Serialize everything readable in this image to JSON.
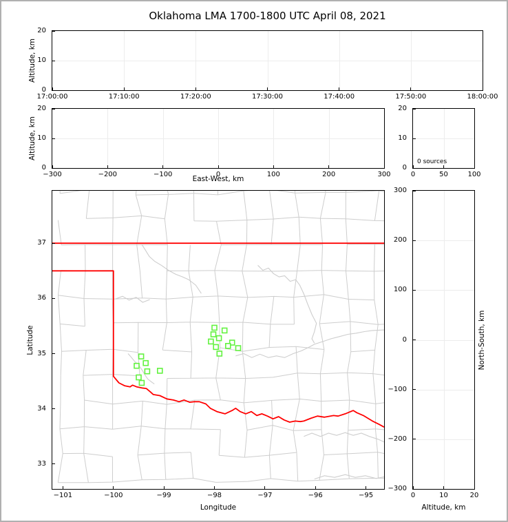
{
  "title": "Oklahoma LMA 1700-1800 UTC April 08, 2021",
  "colors": {
    "state_border": "#ff0000",
    "county_lines": "#cdcdcd",
    "rivers": "#cdcdcd",
    "station_marker": "#62f23f",
    "gridline": "#ececec",
    "spine": "#000000",
    "figure_frame": "#b0b0b0",
    "background": "#ffffff"
  },
  "chart_data": [
    {
      "id": "time_height",
      "type": "scatter",
      "xlabel": "",
      "ylabel": "Altitude, km",
      "xlim": [
        0,
        3600
      ],
      "ylim": [
        0,
        20
      ],
      "xticks": [
        {
          "v": 0,
          "label": "17:00:00"
        },
        {
          "v": 600,
          "label": "17:10:00"
        },
        {
          "v": 1200,
          "label": "17:20:00"
        },
        {
          "v": 1800,
          "label": "17:30:00"
        },
        {
          "v": 2400,
          "label": "17:40:00"
        },
        {
          "v": 3000,
          "label": "17:50:00"
        },
        {
          "v": 3600,
          "label": "18:00:00"
        }
      ],
      "yticks": [
        {
          "v": 0,
          "label": "0"
        },
        {
          "v": 10,
          "label": "10"
        },
        {
          "v": 20,
          "label": "20"
        }
      ],
      "points": []
    },
    {
      "id": "ew_height",
      "type": "scatter",
      "xlabel": "East-West, km",
      "ylabel": "Altitude, km",
      "xlim": [
        -300,
        300
      ],
      "ylim": [
        0,
        20
      ],
      "xticks": [
        {
          "v": -300,
          "label": "−300"
        },
        {
          "v": -200,
          "label": "−200"
        },
        {
          "v": -100,
          "label": "−100"
        },
        {
          "v": 0,
          "label": "0"
        },
        {
          "v": 100,
          "label": "100"
        },
        {
          "v": 200,
          "label": "200"
        },
        {
          "v": 300,
          "label": "300"
        }
      ],
      "yticks": [
        {
          "v": 0,
          "label": "0"
        },
        {
          "v": 10,
          "label": "10"
        },
        {
          "v": 20,
          "label": "20"
        }
      ],
      "points": []
    },
    {
      "id": "alt_histogram",
      "type": "line",
      "xlabel": "",
      "ylabel": "",
      "xlim": [
        0,
        100
      ],
      "ylim": [
        0,
        20
      ],
      "xticks": [
        {
          "v": 0,
          "label": "0"
        },
        {
          "v": 50,
          "label": "50"
        },
        {
          "v": 100,
          "label": "100"
        }
      ],
      "yticks": [
        {
          "v": 0,
          "label": "0"
        },
        {
          "v": 10,
          "label": "10"
        },
        {
          "v": 20,
          "label": "20"
        }
      ],
      "note": "0 sources",
      "points": []
    },
    {
      "id": "map",
      "type": "scatter",
      "xlabel": "Longitude",
      "ylabel": "Latitude",
      "xlim": [
        -101.21,
        -94.64
      ],
      "ylim": [
        32.55,
        37.95
      ],
      "xticks": [
        {
          "v": -101,
          "label": "−101"
        },
        {
          "v": -100,
          "label": "−100"
        },
        {
          "v": -99,
          "label": "−99"
        },
        {
          "v": -98,
          "label": "−98"
        },
        {
          "v": -97,
          "label": "−97"
        },
        {
          "v": -96,
          "label": "−96"
        },
        {
          "v": -95,
          "label": "−95"
        }
      ],
      "yticks": [
        {
          "v": 33,
          "label": "33"
        },
        {
          "v": 34,
          "label": "34"
        },
        {
          "v": 35,
          "label": "35"
        },
        {
          "v": 36,
          "label": "36"
        },
        {
          "v": 37,
          "label": "37"
        }
      ],
      "stations": {
        "marker": "open-square",
        "points": [
          [
            -98.0,
            35.47
          ],
          [
            -97.8,
            35.42
          ],
          [
            -98.02,
            35.35
          ],
          [
            -97.91,
            35.28
          ],
          [
            -98.07,
            35.22
          ],
          [
            -97.65,
            35.2
          ],
          [
            -97.73,
            35.14
          ],
          [
            -97.97,
            35.12
          ],
          [
            -97.53,
            35.1
          ],
          [
            -97.9,
            35.0
          ],
          [
            -99.45,
            34.95
          ],
          [
            -99.36,
            34.83
          ],
          [
            -99.54,
            34.78
          ],
          [
            -99.33,
            34.68
          ],
          [
            -99.08,
            34.69
          ],
          [
            -99.5,
            34.57
          ],
          [
            -99.44,
            34.47
          ]
        ]
      },
      "state_border": {
        "polylines": [
          [
            [
              -101.21,
              37.0
            ],
            [
              -94.64,
              37.0
            ]
          ],
          [
            [
              -101.21,
              36.5
            ],
            [
              -100.0,
              36.5
            ],
            [
              -100.0,
              34.59
            ],
            [
              -99.89,
              34.47
            ],
            [
              -99.78,
              34.42
            ],
            [
              -99.67,
              34.4
            ],
            [
              -99.62,
              34.43
            ],
            [
              -99.54,
              34.4
            ],
            [
              -99.44,
              34.38
            ],
            [
              -99.35,
              34.37
            ],
            [
              -99.27,
              34.31
            ],
            [
              -99.21,
              34.26
            ],
            [
              -99.08,
              34.24
            ],
            [
              -98.94,
              34.18
            ],
            [
              -98.81,
              34.16
            ],
            [
              -98.7,
              34.13
            ],
            [
              -98.6,
              34.16
            ],
            [
              -98.49,
              34.12
            ],
            [
              -98.4,
              34.13
            ],
            [
              -98.3,
              34.13
            ],
            [
              -98.17,
              34.09
            ],
            [
              -98.08,
              34.01
            ],
            [
              -97.95,
              33.95
            ],
            [
              -97.79,
              33.91
            ],
            [
              -97.65,
              33.97
            ],
            [
              -97.58,
              34.01
            ],
            [
              -97.49,
              33.95
            ],
            [
              -97.38,
              33.91
            ],
            [
              -97.27,
              33.95
            ],
            [
              -97.16,
              33.88
            ],
            [
              -97.06,
              33.91
            ],
            [
              -96.95,
              33.87
            ],
            [
              -96.84,
              33.82
            ],
            [
              -96.73,
              33.86
            ],
            [
              -96.62,
              33.8
            ],
            [
              -96.51,
              33.76
            ],
            [
              -96.4,
              33.78
            ],
            [
              -96.3,
              33.77
            ],
            [
              -96.23,
              33.78
            ],
            [
              -96.09,
              33.83
            ],
            [
              -95.96,
              33.87
            ],
            [
              -95.82,
              33.85
            ],
            [
              -95.64,
              33.88
            ],
            [
              -95.55,
              33.87
            ],
            [
              -95.41,
              33.91
            ],
            [
              -95.25,
              33.97
            ],
            [
              -95.18,
              33.93
            ],
            [
              -95.05,
              33.88
            ],
            [
              -94.87,
              33.78
            ],
            [
              -94.74,
              33.72
            ],
            [
              -94.64,
              33.67
            ]
          ]
        ]
      },
      "rivers": [
        [
          [
            -99.44,
            36.98
          ],
          [
            -99.37,
            36.88
          ],
          [
            -99.29,
            36.76
          ],
          [
            -99.18,
            36.67
          ],
          [
            -99.05,
            36.6
          ],
          [
            -98.91,
            36.51
          ],
          [
            -98.77,
            36.44
          ],
          [
            -98.63,
            36.39
          ],
          [
            -98.51,
            36.34
          ],
          [
            -98.37,
            36.24
          ],
          [
            -98.26,
            36.09
          ]
        ],
        [
          [
            -99.96,
            35.99
          ],
          [
            -99.82,
            36.04
          ],
          [
            -99.69,
            35.97
          ],
          [
            -99.55,
            36.02
          ],
          [
            -99.42,
            35.93
          ],
          [
            -99.28,
            35.98
          ]
        ],
        [
          [
            -97.14,
            36.6
          ],
          [
            -97.04,
            36.51
          ],
          [
            -96.93,
            36.55
          ],
          [
            -96.83,
            36.45
          ],
          [
            -96.72,
            36.39
          ],
          [
            -96.61,
            36.41
          ],
          [
            -96.5,
            36.31
          ],
          [
            -96.39,
            36.34
          ],
          [
            -96.31,
            36.24
          ],
          [
            -96.23,
            36.08
          ],
          [
            -96.15,
            35.89
          ],
          [
            -96.07,
            35.71
          ],
          [
            -95.98,
            35.55
          ],
          [
            -96.02,
            35.4
          ],
          [
            -96.07,
            35.27
          ],
          [
            -96.02,
            35.19
          ]
        ],
        [
          [
            -97.58,
            34.96
          ],
          [
            -97.42,
            35.0
          ],
          [
            -97.26,
            34.93
          ],
          [
            -97.1,
            34.99
          ],
          [
            -96.93,
            34.93
          ],
          [
            -96.77,
            34.96
          ],
          [
            -96.61,
            34.93
          ],
          [
            -96.44,
            35.0
          ],
          [
            -96.28,
            35.05
          ],
          [
            -96.12,
            35.12
          ],
          [
            -96.02,
            35.17
          ],
          [
            -95.85,
            35.22
          ],
          [
            -95.69,
            35.27
          ],
          [
            -95.52,
            35.31
          ],
          [
            -95.36,
            35.35
          ],
          [
            -95.2,
            35.37
          ],
          [
            -95.03,
            35.4
          ],
          [
            -94.87,
            35.42
          ],
          [
            -94.64,
            35.43
          ]
        ],
        [
          [
            -99.71,
            35.0
          ],
          [
            -99.65,
            34.94
          ],
          [
            -99.58,
            34.86
          ],
          [
            -99.5,
            34.79
          ],
          [
            -99.43,
            34.7
          ],
          [
            -99.38,
            34.62
          ],
          [
            -99.32,
            34.54
          ],
          [
            -99.25,
            34.49
          ],
          [
            -99.19,
            34.45
          ]
        ],
        [
          [
            -96.23,
            33.5
          ],
          [
            -96.07,
            33.56
          ],
          [
            -95.9,
            33.5
          ],
          [
            -95.74,
            33.56
          ],
          [
            -95.58,
            33.52
          ],
          [
            -95.41,
            33.57
          ],
          [
            -95.25,
            33.52
          ],
          [
            -95.09,
            33.56
          ],
          [
            -94.93,
            33.5
          ],
          [
            -94.76,
            33.45
          ],
          [
            -94.64,
            33.4
          ]
        ],
        [
          [
            -96.02,
            32.73
          ],
          [
            -95.82,
            32.79
          ],
          [
            -95.62,
            32.76
          ],
          [
            -95.41,
            32.81
          ],
          [
            -95.21,
            32.76
          ],
          [
            -95.01,
            32.79
          ],
          [
            -94.8,
            32.74
          ],
          [
            -94.64,
            32.77
          ]
        ]
      ]
    },
    {
      "id": "ns_height",
      "type": "scatter",
      "xlabel": "Altitude, km",
      "ylabel": "North-South, km",
      "xlim": [
        0,
        20
      ],
      "ylim": [
        -300,
        300
      ],
      "xticks": [
        {
          "v": 0,
          "label": "0"
        },
        {
          "v": 10,
          "label": "10"
        },
        {
          "v": 20,
          "label": "20"
        }
      ],
      "yticks": [
        {
          "v": 300,
          "label": "300"
        },
        {
          "v": 200,
          "label": "200"
        },
        {
          "v": 100,
          "label": "100"
        },
        {
          "v": 0,
          "label": "0"
        },
        {
          "v": -100,
          "label": "−100"
        },
        {
          "v": -200,
          "label": "−200"
        },
        {
          "v": -300,
          "label": "−300"
        }
      ],
      "points": []
    }
  ]
}
